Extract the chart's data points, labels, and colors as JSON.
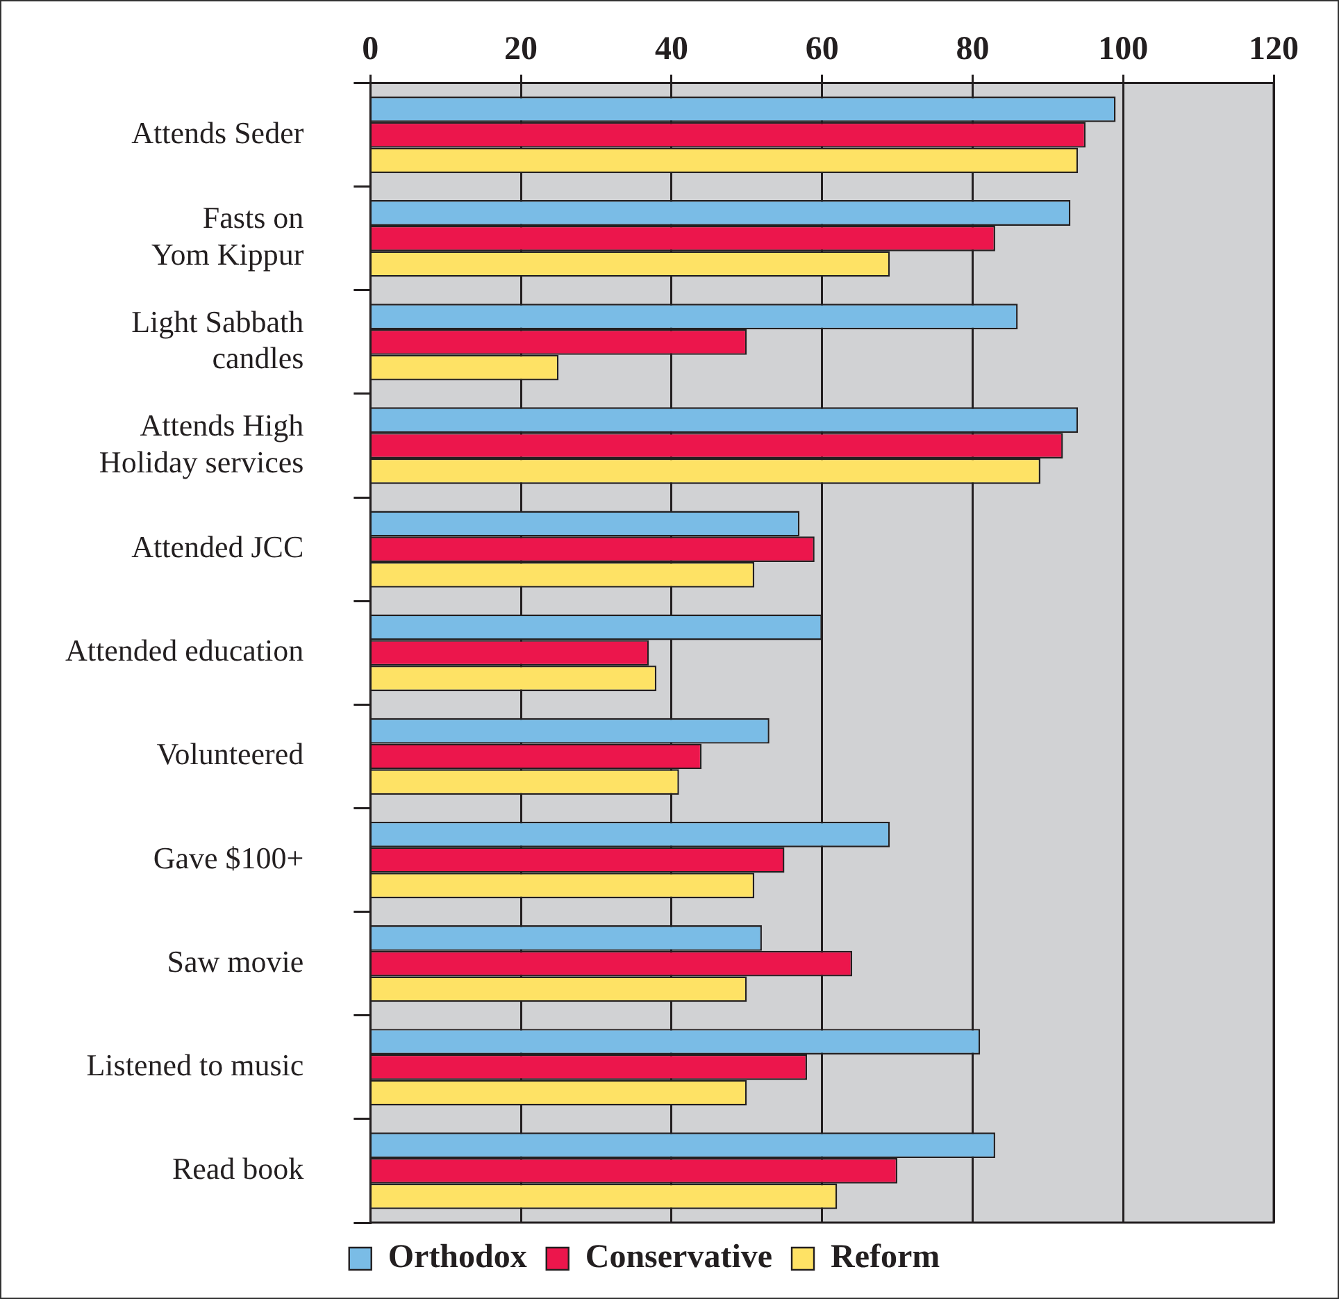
{
  "chart_data": {
    "type": "bar",
    "orientation": "horizontal",
    "categories": [
      "Attends Seder",
      "Fasts on\nYom Kippur",
      "Light Sabbath\ncandles",
      "Attends High\nHoliday services",
      "Attended JCC",
      "Attended education",
      "Volunteered",
      "Gave $100+",
      "Saw movie",
      "Listened to music",
      "Read book"
    ],
    "series": [
      {
        "name": "Orthodox",
        "color": "#7abce6",
        "values": [
          99,
          93,
          86,
          94,
          57,
          60,
          53,
          69,
          52,
          81,
          83
        ]
      },
      {
        "name": "Conservative",
        "color": "#ec164c",
        "values": [
          95,
          83,
          50,
          92,
          59,
          37,
          44,
          55,
          64,
          58,
          70
        ]
      },
      {
        "name": "Reform",
        "color": "#fee265",
        "values": [
          94,
          69,
          25,
          89,
          51,
          38,
          41,
          51,
          50,
          50,
          62
        ]
      }
    ],
    "xlim": [
      0,
      120
    ],
    "xticks": [
      0,
      20,
      40,
      60,
      80,
      100,
      120
    ],
    "grid": "x",
    "legend": "bottom"
  }
}
